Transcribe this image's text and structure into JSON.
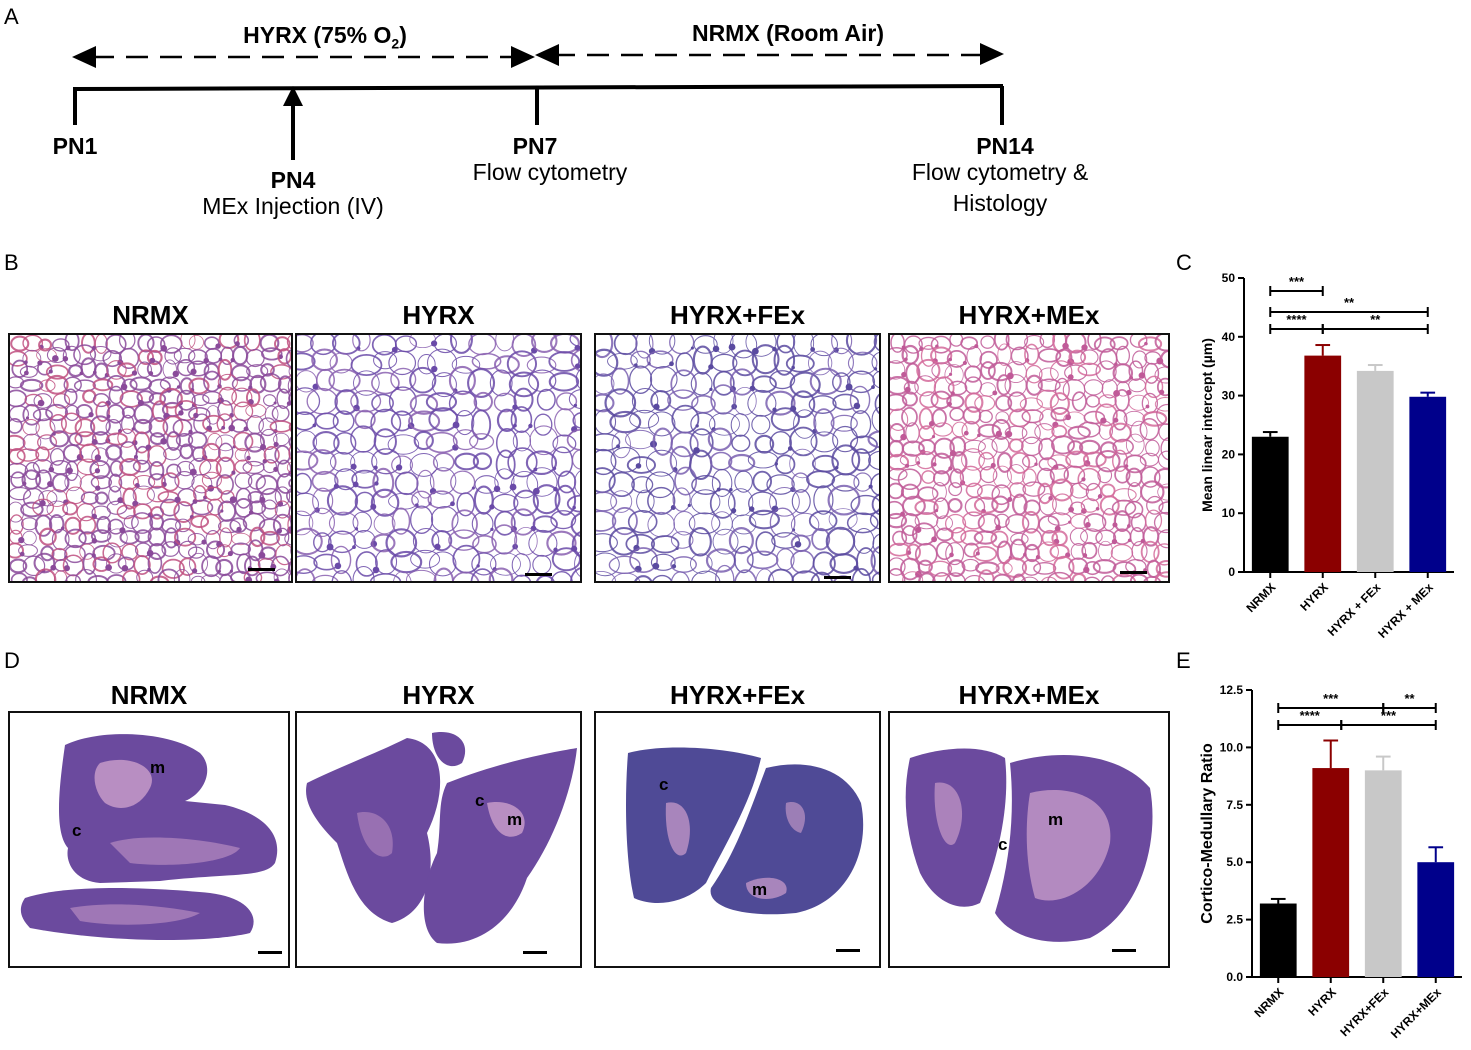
{
  "panels": {
    "a": "A",
    "b": "B",
    "c": "C",
    "d": "D",
    "e": "E"
  },
  "timeline": {
    "hyrx_label": "HYRX (75% O",
    "hyrx_sub": "2",
    "hyrx_close": ")",
    "nrmx_label": "NRMX (Room Air)",
    "pn1": "PN1",
    "pn4": "PN4",
    "pn4_desc": "MEx Injection (IV)",
    "pn7": "PN7",
    "pn7_desc": "Flow cytometry",
    "pn14": "PN14",
    "pn14_desc1": "Flow cytometry &",
    "pn14_desc2": "Histology"
  },
  "lung_titles": [
    "NRMX",
    "HYRX",
    "HYRX+FEx",
    "HYRX+MEx"
  ],
  "thymus_titles": [
    "NRMX",
    "HYRX",
    "HYRX+FEx",
    "HYRX+MEx"
  ],
  "thymus_labels": {
    "m": "m",
    "c": "c"
  },
  "colors": {
    "black": "#000000",
    "darkred": "#8b0000",
    "gray": "#c8c8c8",
    "navy": "#00008b",
    "lung_purple": "#7a4fa0",
    "lung_pink": "#d46a9a",
    "thymus_dark": "#6b4a9e",
    "thymus_light": "#c69ac8"
  },
  "chart_data": [
    {
      "type": "bar",
      "panel": "C",
      "categories": [
        "NRMX",
        "HYRX",
        "HYRX + FEx",
        "HYRX + MEx"
      ],
      "values": [
        23,
        36.8,
        34.2,
        29.8
      ],
      "errors": [
        0.8,
        1.8,
        1.0,
        0.7
      ],
      "ylabel": "Mean linear intercept (µm)",
      "ylim": [
        0,
        50
      ],
      "yticks": [
        "0",
        "10",
        "20",
        "30",
        "40",
        "50"
      ],
      "significance": [
        {
          "from": 1,
          "to": 2,
          "label": "***"
        },
        {
          "from": 1,
          "to": 4,
          "label": "**"
        },
        {
          "from": 1,
          "to": 2.0,
          "label": "****"
        },
        {
          "from": 2,
          "to": 4,
          "label": "**"
        }
      ]
    },
    {
      "type": "bar",
      "panel": "E",
      "categories": [
        "NRMX",
        "HYRX",
        "HYRX+FEx",
        "HYRX+MEx"
      ],
      "values": [
        3.2,
        9.1,
        9.0,
        5.0
      ],
      "errors": [
        0.2,
        1.2,
        0.6,
        0.65
      ],
      "ylabel": "Cortico-Medullary Ratio",
      "ylim": [
        0,
        12.5
      ],
      "yticks": [
        "0.0",
        "2.5",
        "5.0",
        "7.5",
        "10.0",
        "12.5"
      ],
      "significance": [
        {
          "from": 1,
          "to": 3,
          "label": "***"
        },
        {
          "from": 3,
          "to": 4,
          "label": "**"
        },
        {
          "from": 1,
          "to": 2.2,
          "label": "****"
        },
        {
          "from": 2.2,
          "to": 4,
          "label": "***"
        }
      ]
    }
  ]
}
